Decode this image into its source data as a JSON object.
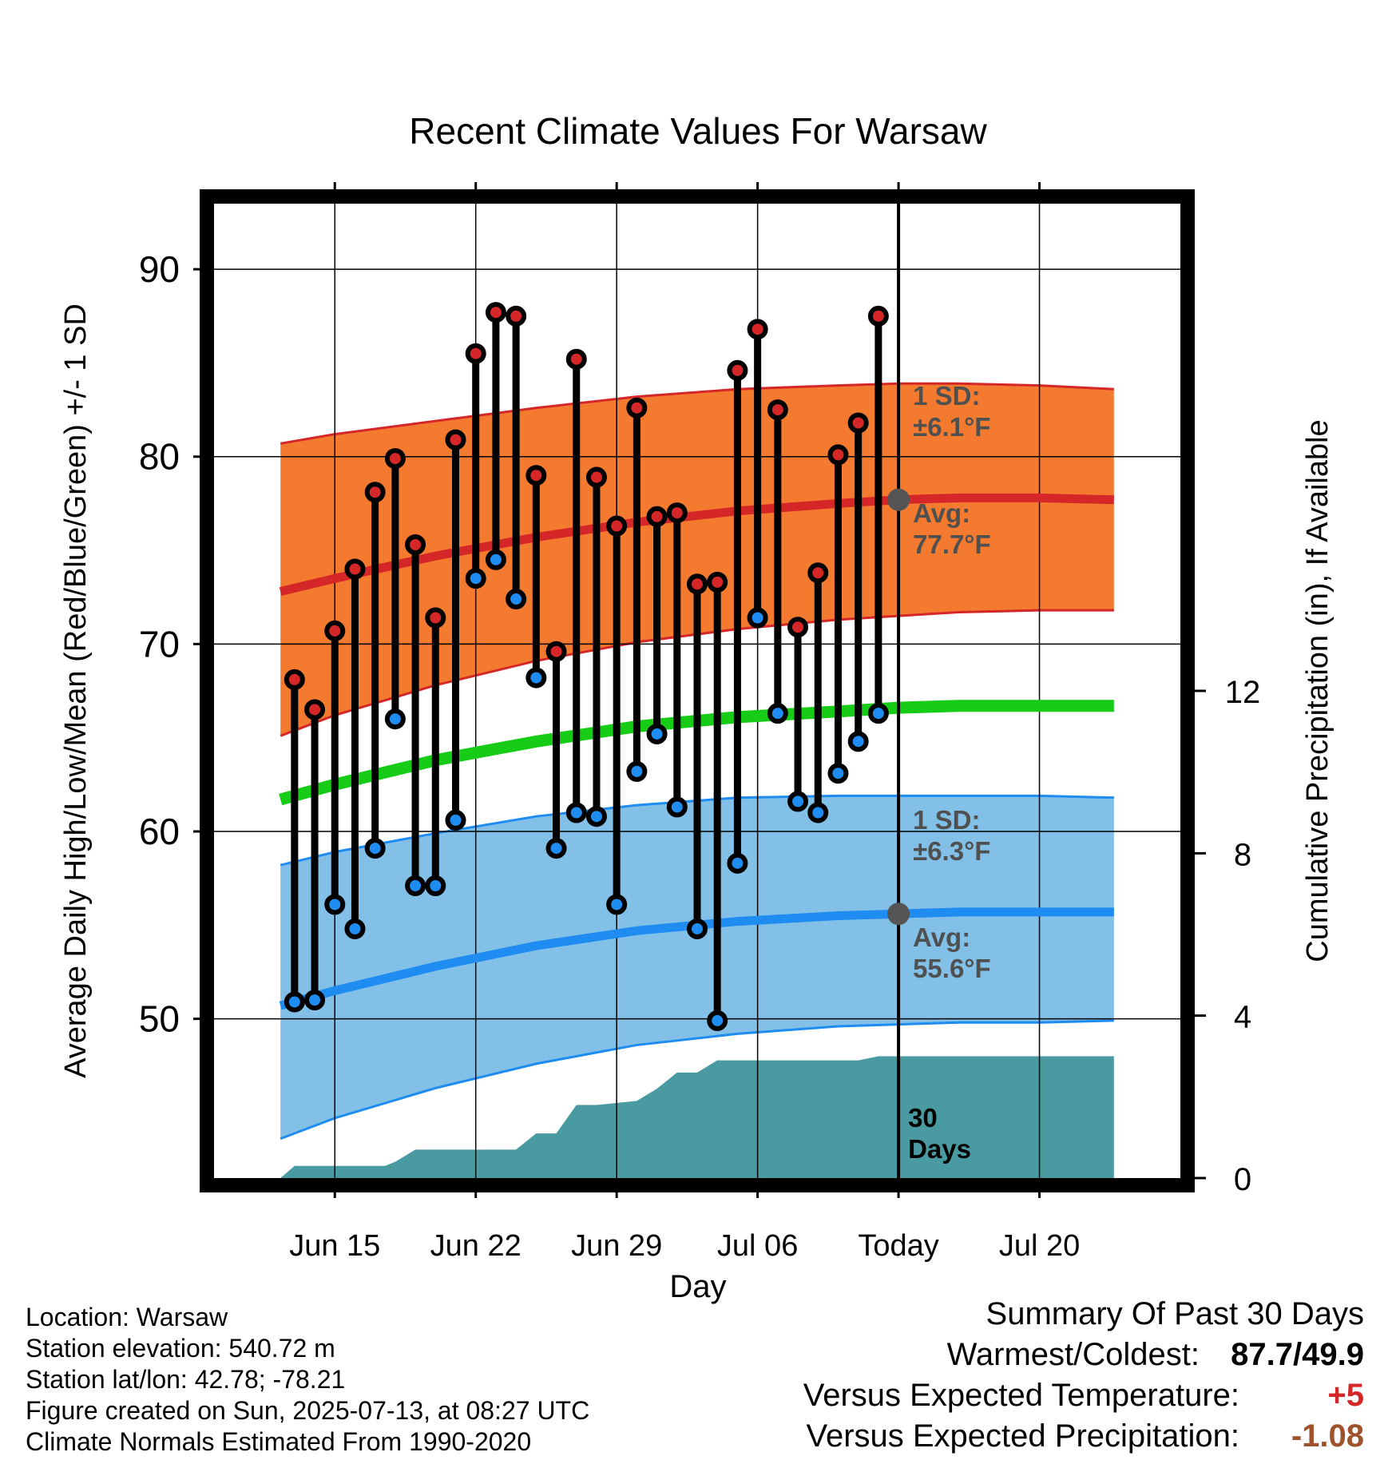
{
  "chart_data": {
    "type": "line",
    "title": "Recent Climate Values For Warsaw",
    "xlabel": "Day",
    "ylabel": "Average Daily High/Low/Mean (Red/Blue/Green) +/- 1 SD",
    "y2label": "Cumulative Precipitation (in), If Available",
    "ylim": [
      41.5,
      93.5
    ],
    "y2lim": [
      0,
      24
    ],
    "x_range": [
      -6,
      42
    ],
    "grid": true,
    "x_ticks": [
      {
        "x": 0,
        "label": "Jun 15"
      },
      {
        "x": 7,
        "label": "Jun 22"
      },
      {
        "x": 14,
        "label": "Jun 29"
      },
      {
        "x": 21,
        "label": "Jul 06"
      },
      {
        "x": 28,
        "label": "Today"
      },
      {
        "x": 35,
        "label": "Jul 20"
      }
    ],
    "y_ticks": [
      50,
      60,
      70,
      80,
      90
    ],
    "y2_ticks": [
      0,
      4,
      8,
      12
    ],
    "today_x": 28,
    "today_label": "30\nDays",
    "normals_x": [
      -2.7,
      0,
      5,
      10,
      15,
      20,
      25,
      28,
      31,
      35,
      38.7
    ],
    "high_avg": [
      72.8,
      73.5,
      74.7,
      75.7,
      76.5,
      77.1,
      77.5,
      77.7,
      77.8,
      77.8,
      77.7
    ],
    "high_upper": [
      80.7,
      81.2,
      81.9,
      82.6,
      83.2,
      83.6,
      83.8,
      83.9,
      83.9,
      83.8,
      83.6
    ],
    "high_lower": [
      65.1,
      66.2,
      67.8,
      69.1,
      70.1,
      70.8,
      71.3,
      71.5,
      71.7,
      71.8,
      71.8
    ],
    "low_avg": [
      50.7,
      51.5,
      52.8,
      53.9,
      54.7,
      55.2,
      55.5,
      55.6,
      55.7,
      55.7,
      55.7
    ],
    "low_upper": [
      58.2,
      58.9,
      59.9,
      60.8,
      61.4,
      61.8,
      61.9,
      61.9,
      61.9,
      61.9,
      61.8
    ],
    "low_lower": [
      43.6,
      44.7,
      46.3,
      47.6,
      48.6,
      49.2,
      49.6,
      49.7,
      49.8,
      49.8,
      49.9
    ],
    "mean_avg": [
      61.7,
      62.5,
      63.8,
      64.8,
      65.6,
      66.1,
      66.4,
      66.6,
      66.7,
      66.7,
      66.7
    ],
    "daily_x": [
      -2,
      -1,
      0,
      1,
      2,
      3,
      4,
      5,
      6,
      7,
      8,
      9,
      10,
      11,
      12,
      13,
      14,
      15,
      16,
      17,
      18,
      19,
      20,
      21,
      22,
      23,
      24,
      25,
      26,
      27
    ],
    "daily_high": [
      68.1,
      66.5,
      70.7,
      74.0,
      78.1,
      79.9,
      75.3,
      71.4,
      80.9,
      85.5,
      87.7,
      87.5,
      79.0,
      69.6,
      85.2,
      78.9,
      76.3,
      82.6,
      76.8,
      77.0,
      73.2,
      73.3,
      84.6,
      86.8,
      82.5,
      70.9,
      73.8,
      80.1,
      81.8,
      87.5
    ],
    "daily_low": [
      50.9,
      51.0,
      56.1,
      54.8,
      59.1,
      66.0,
      57.1,
      57.1,
      60.6,
      73.5,
      74.5,
      72.4,
      68.2,
      59.1,
      61.0,
      60.8,
      56.1,
      63.2,
      65.2,
      61.3,
      54.8,
      49.9,
      58.3,
      71.4,
      66.3,
      61.6,
      61.0,
      63.1,
      64.8,
      66.3
    ],
    "precip_cumulative": {
      "x": [
        -2.7,
        -2,
        0,
        2.5,
        3,
        4,
        9,
        10,
        11,
        12,
        13,
        15,
        16,
        17,
        18,
        19,
        26,
        27,
        38.7
      ],
      "values": [
        0,
        0.3,
        0.3,
        0.3,
        0.4,
        0.7,
        0.7,
        1.1,
        1.1,
        1.8,
        1.8,
        1.9,
        2.2,
        2.6,
        2.6,
        2.9,
        2.9,
        3.0,
        3.0
      ]
    },
    "annotations": {
      "high_sd": "1 SD:\n±6.1°F",
      "high_avg": "Avg:\n77.7°F",
      "low_sd": "1 SD:\n±6.3°F",
      "low_avg": "Avg:\n55.6°F"
    },
    "colors": {
      "high_band": "#f47a2f",
      "high_line": "#d62728",
      "low_band": "#82c0e8",
      "low_line": "#1e8cf0",
      "mean_line": "#16cc16",
      "precip": "#4a9aa2",
      "high_marker": "#d62728",
      "low_marker": "#1e8cf0",
      "annotation_text": "#505050"
    }
  },
  "info": {
    "location": "Location: Warsaw",
    "elevation": "Station elevation: 540.72 m",
    "latlon": "Station lat/lon: 42.78; -78.21",
    "created": "Figure created on Sun, 2025-07-13, at 08:27 UTC",
    "normals": "Climate Normals Estimated From 1990-2020"
  },
  "summary": {
    "title": "Summary Of Past 30 Days",
    "warmest_label": "Warmest/Coldest:",
    "warmest_value": "87.7/49.9",
    "temp_label": "Versus Expected Temperature:",
    "temp_value": "+5",
    "precip_label": "Versus Expected Precipitation:",
    "precip_value": "-1.08"
  }
}
